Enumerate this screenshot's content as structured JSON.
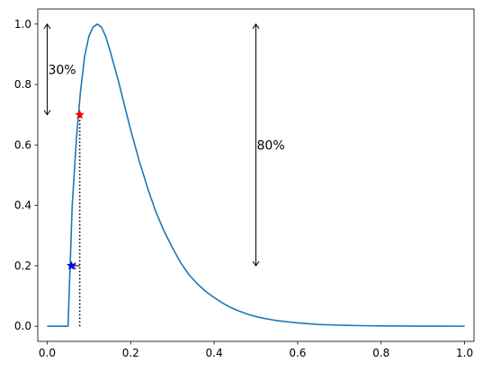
{
  "chart_data": {
    "type": "line",
    "title": "",
    "xlabel": "",
    "ylabel": "",
    "xlim": [
      -0.0225,
      1.0225
    ],
    "ylim": [
      -0.05,
      1.05
    ],
    "grid": false,
    "x_ticks": [
      0.0,
      0.2,
      0.4,
      0.6,
      0.8,
      1.0
    ],
    "x_tick_labels": [
      "0.0",
      "0.2",
      "0.4",
      "0.6",
      "0.8",
      "1.0"
    ],
    "y_ticks": [
      0.0,
      0.2,
      0.4,
      0.6,
      0.8,
      1.0
    ],
    "y_tick_labels": [
      "0.0",
      "0.2",
      "0.4",
      "0.6",
      "0.8",
      "1.0"
    ],
    "series": [
      {
        "color": "#1f77b4",
        "x": [
          0.0,
          0.01,
          0.02,
          0.03,
          0.04,
          0.05,
          0.06,
          0.07,
          0.08,
          0.09,
          0.1,
          0.11,
          0.12,
          0.13,
          0.14,
          0.15,
          0.16,
          0.17,
          0.18,
          0.19,
          0.2,
          0.22,
          0.24,
          0.26,
          0.28,
          0.3,
          0.32,
          0.34,
          0.36,
          0.38,
          0.4,
          0.42,
          0.44,
          0.46,
          0.48,
          0.5,
          0.52,
          0.54,
          0.56,
          0.58,
          0.6,
          0.65,
          0.7,
          0.75,
          0.8,
          0.85,
          0.9,
          0.95,
          1.0
        ],
        "y": [
          0.0,
          0.0,
          0.0,
          0.0,
          0.0,
          0.0,
          0.4,
          0.62,
          0.78,
          0.895,
          0.96,
          0.99,
          1.0,
          0.99,
          0.96,
          0.915,
          0.865,
          0.815,
          0.76,
          0.705,
          0.65,
          0.55,
          0.46,
          0.38,
          0.315,
          0.26,
          0.21,
          0.17,
          0.14,
          0.115,
          0.095,
          0.077,
          0.062,
          0.05,
          0.04,
          0.032,
          0.026,
          0.021,
          0.017,
          0.014,
          0.011,
          0.006,
          0.0035,
          0.002,
          0.0012,
          0.0007,
          0.0004,
          0.0002,
          0.0001
        ]
      }
    ],
    "markers": [
      {
        "x": 0.078,
        "y": 0.7,
        "color": "#ff0000",
        "symbol": "star"
      },
      {
        "x": 0.058,
        "y": 0.2,
        "color": "#0000ff",
        "symbol": "star"
      }
    ],
    "vertical_dotted_line": {
      "x": 0.078,
      "y_from": 0.0,
      "y_to": 0.7,
      "color": "#000000"
    },
    "short_arrow": {
      "x_from": 0.078,
      "x_to": 0.058,
      "y": 0.2
    },
    "arrows": [
      {
        "x": 0.0,
        "y_from": 0.7,
        "y_to": 1.0,
        "label": "30%"
      },
      {
        "x": 0.5,
        "y_from": 0.2,
        "y_to": 1.0,
        "label": "80%"
      }
    ]
  }
}
